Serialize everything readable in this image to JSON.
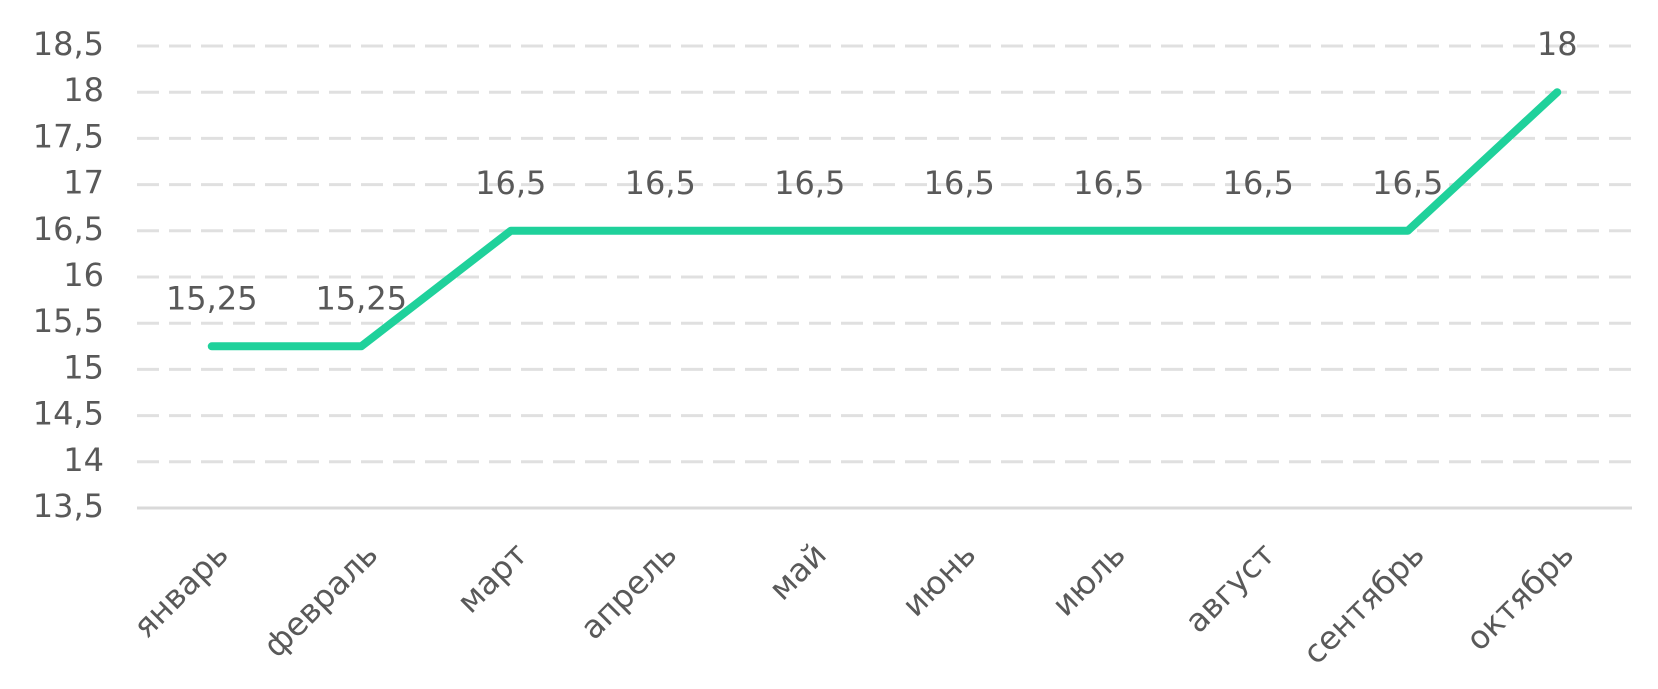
{
  "chart_data": {
    "type": "line",
    "categories": [
      "январь",
      "февраль",
      "март",
      "апрель",
      "май",
      "июнь",
      "июль",
      "август",
      "сентябрь",
      "октябрь"
    ],
    "values": [
      15.25,
      15.25,
      16.5,
      16.5,
      16.5,
      16.5,
      16.5,
      16.5,
      16.5,
      18
    ],
    "value_labels": [
      "15,25",
      "15,25",
      "16,5",
      "16,5",
      "16,5",
      "16,5",
      "16,5",
      "16,5",
      "16,5",
      "18"
    ],
    "color": "#1fd19b",
    "ylim": [
      13.5,
      18.5
    ],
    "yticks": [
      {
        "value": 13.5,
        "label": "13,5"
      },
      14,
      {
        "value": 14.5,
        "label": "14,5"
      },
      15,
      {
        "value": 15.5,
        "label": "15,5"
      },
      16,
      {
        "value": 16.5,
        "label": "16,5"
      },
      17,
      {
        "value": 17.5,
        "label": "17,5"
      },
      18,
      {
        "value": 18.5,
        "label": "18,5"
      }
    ],
    "grid": true
  }
}
